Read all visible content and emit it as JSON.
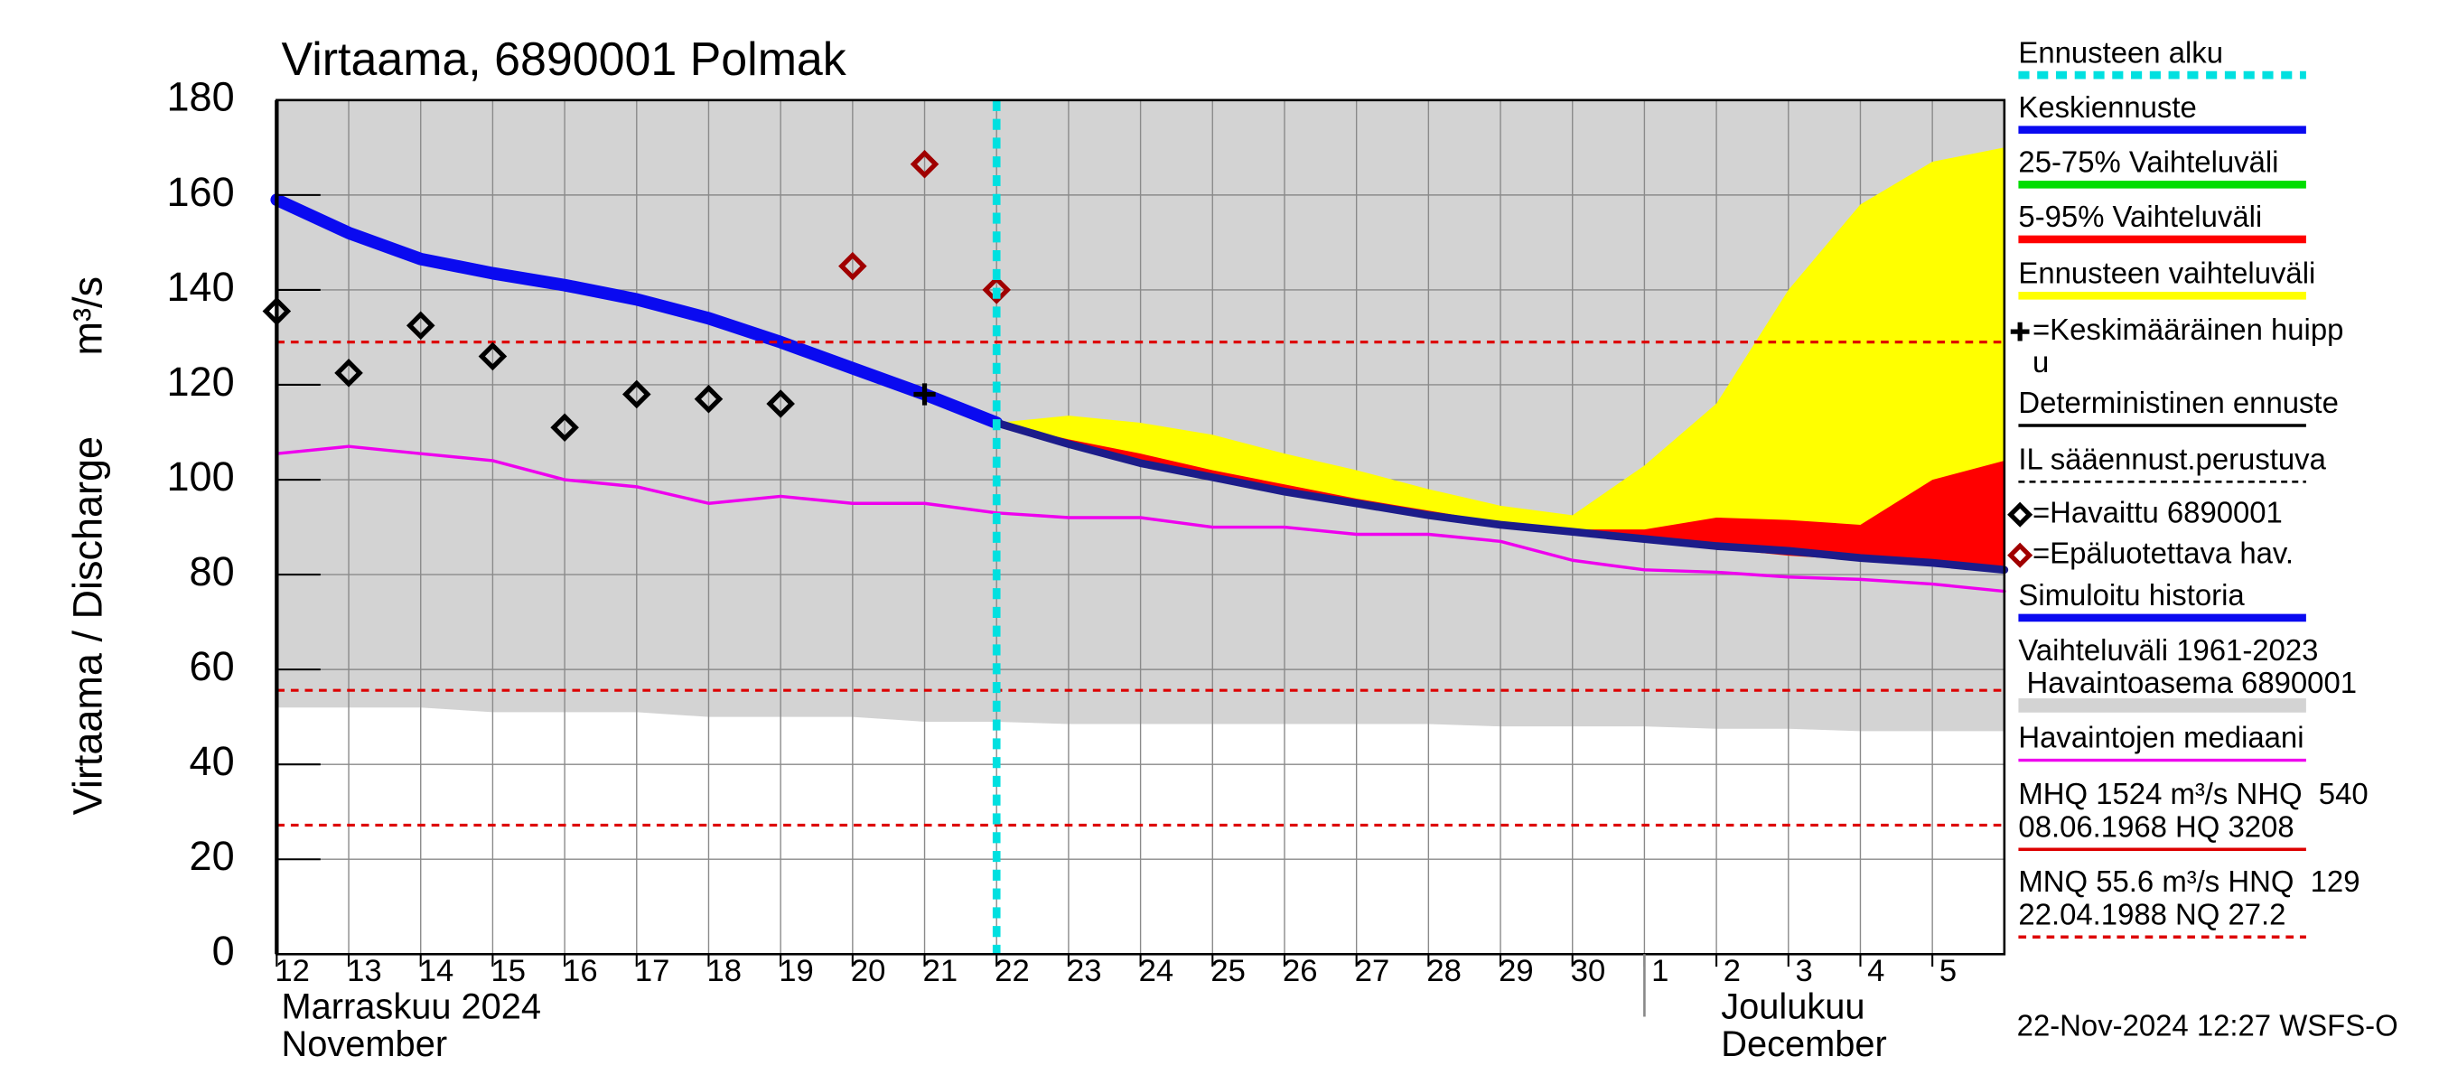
{
  "chart_data": {
    "type": "hydrograph",
    "title": "Virtaama, 6890001 Polmak",
    "y_label": "Virtaama / Discharge",
    "y_unit": "m³/s",
    "xlim": [
      "2024-11-12",
      "2024-12-06"
    ],
    "xticks": [
      {
        "value": "2024-11-12",
        "label": "12"
      },
      {
        "value": "2024-11-13",
        "label": "13"
      },
      {
        "value": "2024-11-14",
        "label": "14"
      },
      {
        "value": "2024-11-15",
        "label": "15"
      },
      {
        "value": "2024-11-16",
        "label": "16"
      },
      {
        "value": "2024-11-17",
        "label": "17"
      },
      {
        "value": "2024-11-18",
        "label": "18"
      },
      {
        "value": "2024-11-19",
        "label": "19"
      },
      {
        "value": "2024-11-20",
        "label": "20"
      },
      {
        "value": "2024-11-21",
        "label": "21"
      },
      {
        "value": "2024-11-22",
        "label": "22"
      },
      {
        "value": "2024-11-23",
        "label": "23"
      },
      {
        "value": "2024-11-24",
        "label": "24"
      },
      {
        "value": "2024-11-25",
        "label": "25"
      },
      {
        "value": "2024-11-26",
        "label": "26"
      },
      {
        "value": "2024-11-27",
        "label": "27"
      },
      {
        "value": "2024-11-28",
        "label": "28"
      },
      {
        "value": "2024-11-29",
        "label": "29"
      },
      {
        "value": "2024-11-30",
        "label": "30"
      },
      {
        "value": "2024-12-01",
        "label": "1"
      },
      {
        "value": "2024-12-02",
        "label": "2"
      },
      {
        "value": "2024-12-03",
        "label": "3"
      },
      {
        "value": "2024-12-04",
        "label": "4"
      },
      {
        "value": "2024-12-05",
        "label": "5"
      }
    ],
    "month_labels": [
      {
        "lines": [
          "Marraskuu 2024",
          "November"
        ],
        "start": "2024-11-12"
      },
      {
        "lines": [
          "Joulukuu",
          "December"
        ],
        "start": "2024-12-01"
      }
    ],
    "ylim": [
      0,
      180
    ],
    "yticks": [
      0,
      20,
      40,
      60,
      80,
      100,
      120,
      140,
      160,
      180
    ],
    "grid": true,
    "forecast_start": {
      "x": "2024-11-22",
      "color": "#00e0e0"
    },
    "hlines": [
      {
        "value": 129,
        "color": "#dd0000"
      },
      {
        "value": 55.6,
        "color": "#dd0000"
      },
      {
        "value": 27.2,
        "color": "#dd0000"
      }
    ],
    "series": [
      {
        "kind": "area_to_top",
        "color": "#d3d3d3",
        "x": [
          "2024-11-12",
          "2024-11-13",
          "2024-11-14",
          "2024-11-15",
          "2024-11-16",
          "2024-11-17",
          "2024-11-18",
          "2024-11-19",
          "2024-11-20",
          "2024-11-21",
          "2024-11-22",
          "2024-11-23",
          "2024-11-24",
          "2024-11-25",
          "2024-11-26",
          "2024-11-27",
          "2024-11-28",
          "2024-11-29",
          "2024-11-30",
          "2024-12-01",
          "2024-12-02",
          "2024-12-03",
          "2024-12-04",
          "2024-12-05",
          "2024-12-06"
        ],
        "values": [
          52,
          52,
          52,
          51,
          51,
          51,
          50,
          50,
          50,
          49,
          49,
          48.5,
          48.5,
          48.5,
          48.5,
          48.5,
          48.5,
          48,
          48,
          48,
          47.5,
          47.5,
          47,
          47,
          47
        ]
      },
      {
        "kind": "band",
        "color": "#ffff00",
        "x": [
          "2024-11-22",
          "2024-11-23",
          "2024-11-24",
          "2024-11-25",
          "2024-11-26",
          "2024-11-27",
          "2024-11-28",
          "2024-11-29",
          "2024-11-30",
          "2024-12-01",
          "2024-12-02",
          "2024-12-03",
          "2024-12-04",
          "2024-12-05",
          "2024-12-06"
        ],
        "upper": [
          112,
          113.5,
          112,
          109.5,
          105.5,
          102,
          98,
          94.5,
          92.5,
          103,
          116,
          140,
          158,
          167,
          170
        ],
        "lower": [
          112,
          107,
          103,
          100,
          97,
          94.5,
          92,
          90,
          88.5,
          87,
          85.5,
          84,
          83,
          82,
          80.5
        ]
      },
      {
        "kind": "band",
        "color": "#ff0000",
        "x": [
          "2024-11-22",
          "2024-11-23",
          "2024-11-24",
          "2024-11-25",
          "2024-11-26",
          "2024-11-27",
          "2024-11-28",
          "2024-11-29",
          "2024-11-30",
          "2024-12-01",
          "2024-12-02",
          "2024-12-03",
          "2024-12-04",
          "2024-12-05",
          "2024-12-06"
        ],
        "upper": [
          112,
          108.5,
          105.5,
          102,
          99,
          96,
          93.5,
          91,
          89.5,
          89.5,
          92,
          91.5,
          90.5,
          100,
          104
        ],
        "lower": [
          112,
          107,
          103,
          100,
          97,
          94.5,
          92,
          90,
          88.5,
          87,
          85.5,
          84,
          83,
          82,
          80.5
        ]
      },
      {
        "kind": "line",
        "color": "#ee00ee",
        "width": 2,
        "x": [
          "2024-11-12",
          "2024-11-13",
          "2024-11-14",
          "2024-11-15",
          "2024-11-16",
          "2024-11-17",
          "2024-11-18",
          "2024-11-19",
          "2024-11-20",
          "2024-11-21",
          "2024-11-22",
          "2024-11-23",
          "2024-11-24",
          "2024-11-25",
          "2024-11-26",
          "2024-11-27",
          "2024-11-28",
          "2024-11-29",
          "2024-11-30",
          "2024-12-01",
          "2024-12-02",
          "2024-12-03",
          "2024-12-04",
          "2024-12-05",
          "2024-12-06"
        ],
        "values": [
          105.5,
          107,
          105.5,
          104,
          100,
          98.5,
          95,
          96.5,
          95,
          95,
          93,
          92,
          92,
          90,
          90,
          88.5,
          88.5,
          87,
          83,
          81,
          80.5,
          79.5,
          79,
          78,
          76.5
        ]
      },
      {
        "kind": "line",
        "color": "#0a0af0",
        "width": 8,
        "x": [
          "2024-11-12",
          "2024-11-13",
          "2024-11-14",
          "2024-11-15",
          "2024-11-16",
          "2024-11-17",
          "2024-11-18",
          "2024-11-19",
          "2024-11-20",
          "2024-11-21",
          "2024-11-22"
        ],
        "values": [
          159,
          152,
          146.5,
          143.5,
          141,
          138,
          134,
          129,
          123.5,
          118,
          112
        ]
      },
      {
        "kind": "line",
        "color": "#1c1c8a",
        "width": 5,
        "x": [
          "2024-11-22",
          "2024-11-23",
          "2024-11-24",
          "2024-11-25",
          "2024-11-26",
          "2024-11-27",
          "2024-11-28",
          "2024-11-29",
          "2024-11-30",
          "2024-12-01",
          "2024-12-02",
          "2024-12-03",
          "2024-12-04",
          "2024-12-05",
          "2024-12-06"
        ],
        "values": [
          112,
          107.5,
          103.5,
          100.5,
          97.5,
          95,
          92.5,
          90.5,
          89,
          87.5,
          86,
          85,
          83.5,
          82.5,
          81
        ]
      },
      {
        "kind": "diamond",
        "color": "#000000",
        "x": [
          "2024-11-12",
          "2024-11-13",
          "2024-11-14",
          "2024-11-15",
          "2024-11-16",
          "2024-11-17",
          "2024-11-18",
          "2024-11-19"
        ],
        "values": [
          135.5,
          122.5,
          132.5,
          126,
          111,
          118,
          117,
          116
        ]
      },
      {
        "kind": "diamond",
        "color": "#a00000",
        "x": [
          "2024-11-20",
          "2024-11-21",
          "2024-11-22"
        ],
        "values": [
          145,
          166.5,
          140
        ]
      },
      {
        "kind": "plus",
        "color": "#000000",
        "x": [
          "2024-11-21"
        ],
        "values": [
          118
        ]
      }
    ],
    "legend": [
      {
        "lines": [
          "Ennusteen alku"
        ],
        "style": "dotted",
        "color": "#00e0e0"
      },
      {
        "lines": [
          "Keskiennuste"
        ],
        "style": "thick",
        "color": "#0a0af0"
      },
      {
        "lines": [
          "25-75% Vaihteluväli"
        ],
        "style": "thick",
        "color": "#00dd00"
      },
      {
        "lines": [
          "5-95% Vaihteluväli"
        ],
        "style": "thick",
        "color": "#ff0000"
      },
      {
        "lines": [
          "Ennusteen vaihteluväli"
        ],
        "style": "thick",
        "color": "#ffff00"
      },
      {
        "lines": [
          "=Keskimääräinen huipp",
          "u"
        ],
        "style": "plus",
        "color": "#000000"
      },
      {
        "lines": [
          "Deterministinen ennuste"
        ],
        "style": "thin",
        "color": "#000000"
      },
      {
        "lines": [
          "IL sääennust.perustuva"
        ],
        "style": "dashed-thin",
        "color": "#000000"
      },
      {
        "lines": [
          "=Havaittu 6890001"
        ],
        "style": "diamond",
        "color": "#000000"
      },
      {
        "lines": [
          "=Epäluotettava hav."
        ],
        "style": "diamond",
        "color": "#a00000"
      },
      {
        "lines": [
          "Simuloitu historia"
        ],
        "style": "thick",
        "color": "#0a0af0"
      },
      {
        "lines": [
          "Vaihteluväli 1961-2023",
          " Havaintoasema 6890001"
        ],
        "style": "band",
        "color": "#d3d3d3"
      },
      {
        "lines": [
          "Havaintojen mediaani"
        ],
        "style": "thin",
        "color": "#ee00ee"
      },
      {
        "lines": [
          "MHQ 1524 m³/s NHQ  540",
          "08.06.1968 HQ 3208"
        ],
        "style": "thin",
        "color": "#dd0000"
      },
      {
        "lines": [
          "MNQ 55.6 m³/s HNQ  129",
          "22.04.1988 NQ 27.2"
        ],
        "style": "dashed",
        "color": "#dd0000"
      }
    ],
    "timestamp": "22-Nov-2024 12:27 WSFS-O"
  }
}
